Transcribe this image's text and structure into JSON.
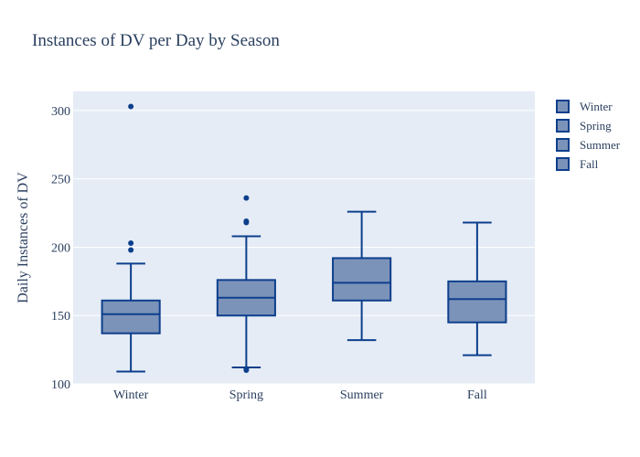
{
  "chart_data": {
    "type": "box",
    "title": "Instances of DV per Day by Season",
    "xlabel": "",
    "ylabel": "Daily Instances of DV",
    "ylim": [
      100,
      314
    ],
    "yticks": [
      100,
      150,
      200,
      250,
      300
    ],
    "grid": true,
    "legend_position": "top-right",
    "colors": {
      "plot_bg": "#e5ecf6",
      "box_fill": "#7c93b9",
      "box_line": "#0d3f8c",
      "grid": "#ffffff",
      "text": "#2a3f5f"
    },
    "categories": [
      "Winter",
      "Spring",
      "Summer",
      "Fall"
    ],
    "series": [
      {
        "name": "Winter",
        "min": 109,
        "q1": 137,
        "median": 151,
        "q3": 161,
        "max": 188,
        "outliers": [
          198,
          203,
          303
        ]
      },
      {
        "name": "Spring",
        "min": 112,
        "q1": 150,
        "median": 163,
        "q3": 176,
        "max": 208,
        "outliers": [
          110,
          111,
          218,
          219,
          236
        ]
      },
      {
        "name": "Summer",
        "min": 132,
        "q1": 161,
        "median": 174,
        "q3": 192,
        "max": 226,
        "outliers": []
      },
      {
        "name": "Fall",
        "min": 121,
        "q1": 145,
        "median": 162,
        "q3": 175,
        "max": 218,
        "outliers": []
      }
    ]
  }
}
